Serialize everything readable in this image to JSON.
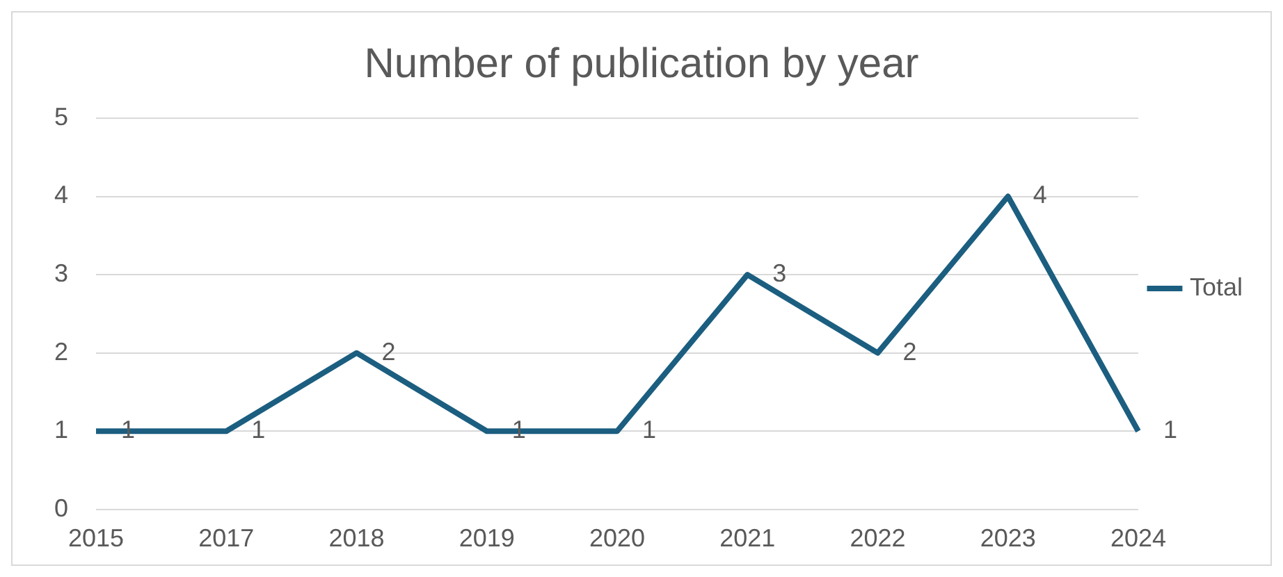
{
  "chart_data": {
    "type": "line",
    "title": "Number of publication by year",
    "categories": [
      "2015",
      "2017",
      "2018",
      "2019",
      "2020",
      "2021",
      "2022",
      "2023",
      "2024"
    ],
    "series": [
      {
        "name": "Total",
        "color": "#1b5e80",
        "values": [
          1,
          1,
          2,
          1,
          1,
          3,
          2,
          4,
          1
        ]
      }
    ],
    "ylim": [
      0,
      5
    ],
    "yticks": [
      0,
      1,
      2,
      3,
      4,
      5
    ],
    "grid": "y",
    "legend": "right",
    "data_labels": true,
    "marker": "none"
  }
}
